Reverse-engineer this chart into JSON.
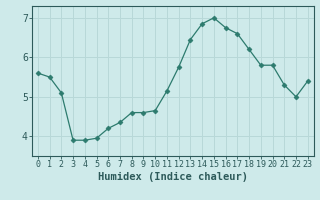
{
  "x": [
    0,
    1,
    2,
    3,
    4,
    5,
    6,
    7,
    8,
    9,
    10,
    11,
    12,
    13,
    14,
    15,
    16,
    17,
    18,
    19,
    20,
    21,
    22,
    23
  ],
  "y": [
    5.6,
    5.5,
    5.1,
    3.9,
    3.9,
    3.95,
    4.2,
    4.35,
    4.6,
    4.6,
    4.65,
    5.15,
    5.75,
    6.45,
    6.85,
    7.0,
    6.75,
    6.6,
    6.2,
    5.8,
    5.8,
    5.3,
    5.0,
    5.4
  ],
  "line_color": "#2d7b6e",
  "marker": "D",
  "marker_size": 2.5,
  "bg_color": "#ceeaea",
  "grid_color": "#b8d8d8",
  "xlabel": "Humidex (Indice chaleur)",
  "ylim": [
    3.5,
    7.3
  ],
  "xlim": [
    -0.5,
    23.5
  ],
  "yticks": [
    4,
    5,
    6,
    7
  ],
  "xticks": [
    0,
    1,
    2,
    3,
    4,
    5,
    6,
    7,
    8,
    9,
    10,
    11,
    12,
    13,
    14,
    15,
    16,
    17,
    18,
    19,
    20,
    21,
    22,
    23
  ],
  "tick_color": "#2d5a5a",
  "label_fontsize": 7.5,
  "tick_fontsize": 6.0
}
